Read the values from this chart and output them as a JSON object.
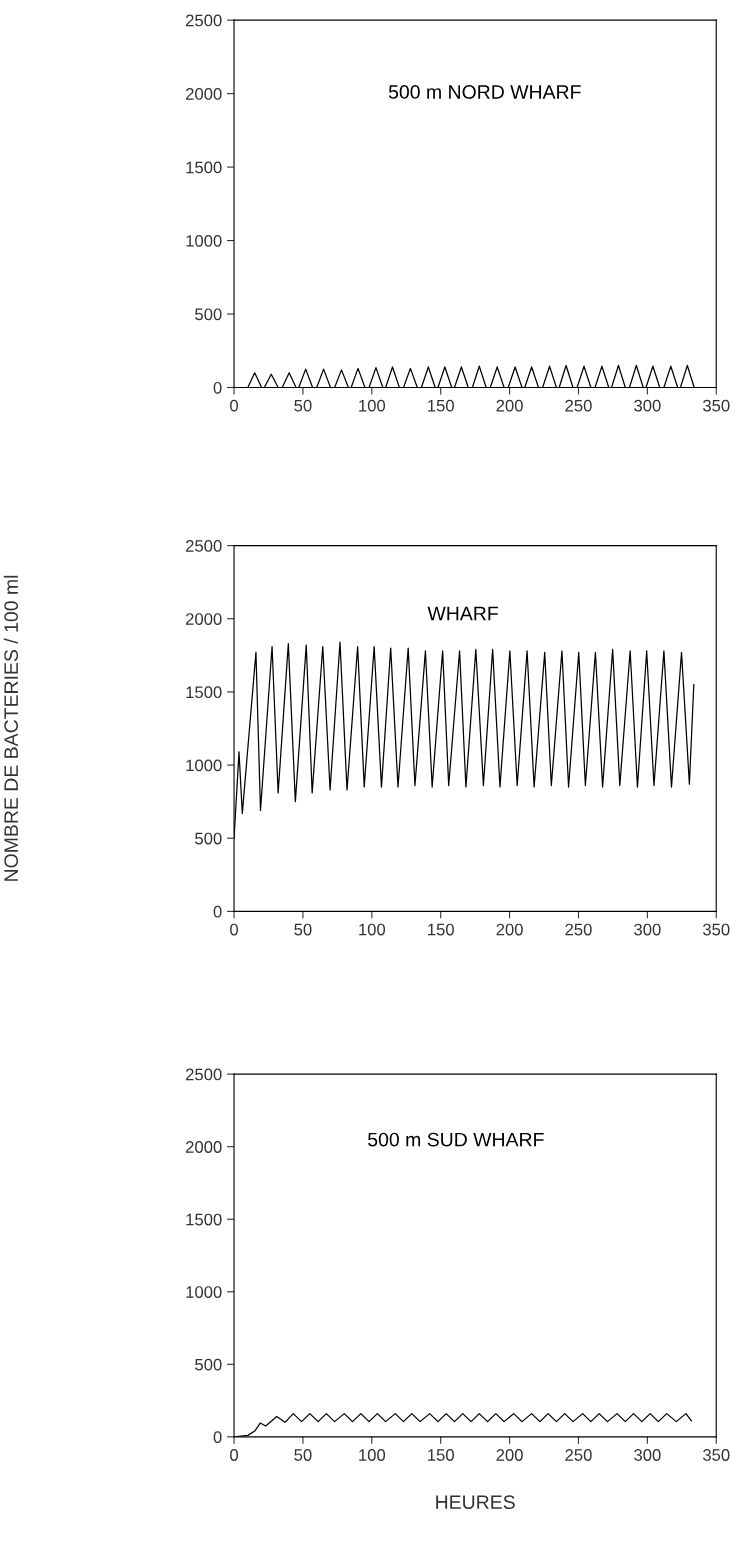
{
  "chart_data": [
    {
      "type": "line",
      "title": "500 m NORD WHARF",
      "xlim": [
        0,
        350
      ],
      "ylim": [
        0,
        2500
      ],
      "xticks": [
        0,
        50,
        100,
        150,
        200,
        250,
        300,
        350
      ],
      "yticks": [
        0,
        500,
        1000,
        1500,
        2000,
        2500
      ],
      "grid": false,
      "legend": false,
      "series": [
        {
          "color": "#000000",
          "x": [
            0,
            10,
            15,
            20,
            22,
            27,
            32,
            35,
            40,
            45,
            47,
            52,
            57,
            60,
            65,
            70,
            73,
            78,
            83,
            85,
            90,
            95,
            98,
            103,
            108,
            110,
            115,
            120,
            123,
            128,
            133,
            136,
            141,
            146,
            148,
            153,
            158,
            160,
            165,
            170,
            173,
            178,
            183,
            186,
            191,
            196,
            199,
            204,
            209,
            211,
            216,
            221,
            224,
            229,
            234,
            236,
            241,
            246,
            249,
            254,
            259,
            262,
            267,
            272,
            274,
            279,
            284,
            287,
            292,
            297,
            299,
            304,
            309,
            312,
            317,
            322,
            324,
            329,
            334,
            335
          ],
          "values": [
            0,
            0,
            100,
            0,
            0,
            90,
            0,
            0,
            100,
            0,
            0,
            125,
            0,
            0,
            125,
            0,
            0,
            120,
            0,
            0,
            130,
            0,
            0,
            135,
            0,
            0,
            140,
            0,
            0,
            130,
            0,
            0,
            140,
            0,
            0,
            140,
            0,
            0,
            140,
            0,
            0,
            145,
            0,
            0,
            140,
            0,
            0,
            140,
            0,
            0,
            140,
            0,
            0,
            145,
            0,
            0,
            150,
            0,
            0,
            145,
            0,
            0,
            145,
            0,
            0,
            150,
            0,
            0,
            150,
            0,
            0,
            145,
            0,
            0,
            145,
            0,
            0,
            150,
            0,
            0
          ]
        }
      ]
    },
    {
      "type": "line",
      "title": "WHARF",
      "ylabel": "NOMBRE DE BACTERIES / 100 ml",
      "xlim": [
        0,
        350
      ],
      "ylim": [
        0,
        2500
      ],
      "xticks": [
        0,
        50,
        100,
        150,
        200,
        250,
        300,
        350
      ],
      "yticks": [
        0,
        500,
        1000,
        1500,
        2000,
        2500
      ],
      "grid": false,
      "legend": false,
      "series": [
        {
          "color": "#000000",
          "x": [
            0,
            3.6,
            6.0,
            15.9,
            19.2,
            27.6,
            32.0,
            39.4,
            44.5,
            52.4,
            56.7,
            64.4,
            69.7,
            76.9,
            82.0,
            89.7,
            94.5,
            101.7,
            107.0,
            113.7,
            119.0,
            126.4,
            131.3,
            138.9,
            143.8,
            151.4,
            155.8,
            163.7,
            168.3,
            175.5,
            181.0,
            187.7,
            193.0,
            200.2,
            205.5,
            212.7,
            217.8,
            225.5,
            230.3,
            238.0,
            242.8,
            250.2,
            255.0,
            262.3,
            267.5,
            274.8,
            280.0,
            287.5,
            292.8,
            299.5,
            304.8,
            312.0,
            317.5,
            324.8,
            330.5,
            333.7
          ],
          "values": [
            500,
            1090,
            670,
            1770,
            690,
            1810,
            810,
            1830,
            750,
            1820,
            810,
            1810,
            830,
            1840,
            830,
            1810,
            850,
            1810,
            850,
            1800,
            850,
            1800,
            860,
            1780,
            850,
            1780,
            860,
            1780,
            850,
            1790,
            860,
            1790,
            850,
            1780,
            860,
            1780,
            850,
            1770,
            860,
            1780,
            850,
            1770,
            860,
            1770,
            850,
            1790,
            860,
            1780,
            850,
            1780,
            860,
            1780,
            850,
            1770,
            870,
            1550
          ]
        }
      ]
    },
    {
      "type": "line",
      "title": "500 m SUD WHARF",
      "xlabel": "HEURES",
      "xlim": [
        0,
        350
      ],
      "ylim": [
        0,
        2500
      ],
      "xticks": [
        0,
        50,
        100,
        150,
        200,
        250,
        300,
        350
      ],
      "yticks": [
        0,
        500,
        1000,
        1500,
        2000,
        2500
      ],
      "grid": false,
      "legend": false,
      "series": [
        {
          "color": "#000000",
          "x": [
            0,
            10,
            15,
            19,
            23,
            31,
            37,
            43,
            49,
            55,
            61,
            67,
            73,
            80,
            86,
            92,
            98,
            104,
            110,
            117,
            123,
            129,
            135,
            142,
            148,
            154,
            160,
            166,
            172,
            178,
            184,
            190,
            196,
            203,
            209,
            216,
            222,
            228,
            234,
            240,
            246,
            253,
            259,
            265,
            271,
            278,
            284,
            290,
            296,
            302,
            308,
            314,
            321,
            328,
            332
          ],
          "values": [
            0,
            10,
            40,
            95,
            75,
            140,
            100,
            160,
            105,
            160,
            105,
            160,
            105,
            160,
            105,
            160,
            105,
            160,
            105,
            160,
            105,
            160,
            105,
            160,
            105,
            160,
            105,
            160,
            105,
            160,
            105,
            160,
            105,
            160,
            105,
            160,
            105,
            160,
            105,
            160,
            105,
            160,
            105,
            160,
            105,
            160,
            105,
            160,
            105,
            160,
            105,
            160,
            105,
            160,
            110
          ]
        }
      ]
    }
  ]
}
